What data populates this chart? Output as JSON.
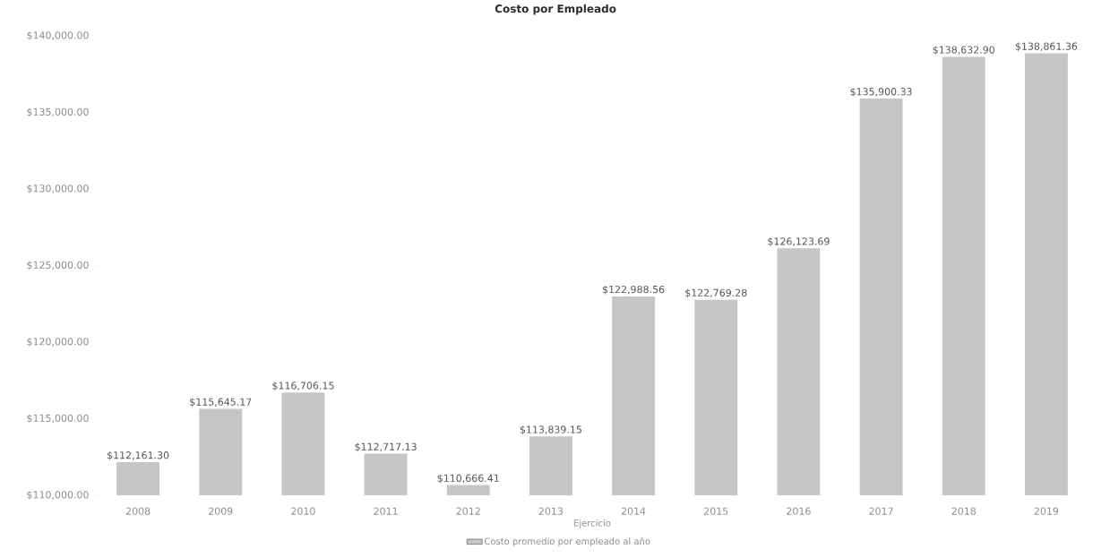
{
  "chart_data": {
    "type": "bar",
    "title": "Costo por Empleado",
    "xlabel": "Ejercicio",
    "categories": [
      "2008",
      "2009",
      "2010",
      "2011",
      "2012",
      "2013",
      "2014",
      "2015",
      "2016",
      "2017",
      "2018",
      "2019"
    ],
    "series": [
      {
        "name": "Costo promedio por empleado al año",
        "color": "#c6c6c6",
        "values": [
          112161.3,
          115645.17,
          116706.15,
          112717.13,
          110666.41,
          113839.15,
          122988.56,
          122769.28,
          126123.69,
          135900.33,
          138632.9,
          138861.36
        ],
        "value_labels": [
          "$112,161.30",
          "$115,645.17",
          "$116,706.15",
          "$112,717.13",
          "$110,666.41",
          "$113,839.15",
          "$122,988.56",
          "$122,769.28",
          "$126,123.69",
          "$135,900.33",
          "$138,632.90",
          "$138,861.36"
        ]
      }
    ],
    "ylim": [
      110000,
      140000
    ],
    "yticks": [
      {
        "value": 110000,
        "label": "$110,000.00"
      },
      {
        "value": 115000,
        "label": "$115,000.00"
      },
      {
        "value": 120000,
        "label": "$120,000.00"
      },
      {
        "value": 125000,
        "label": "$125,000.00"
      },
      {
        "value": 130000,
        "label": "$130,000.00"
      },
      {
        "value": 135000,
        "label": "$135,000.00"
      },
      {
        "value": 140000,
        "label": "$140,000.00"
      }
    ],
    "legend": "bottom"
  }
}
